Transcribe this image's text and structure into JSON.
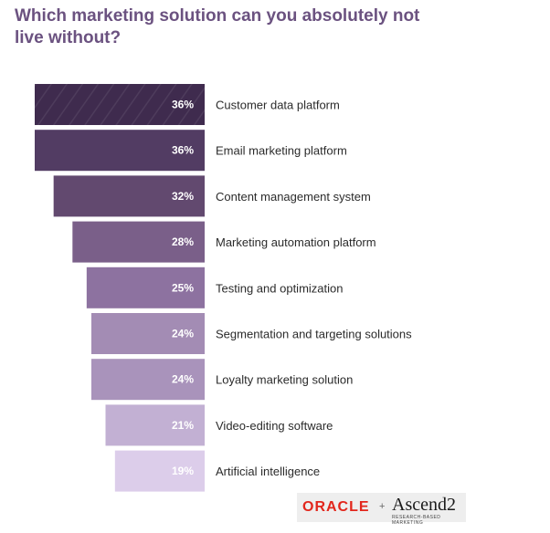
{
  "title": "Which marketing solution can you absolutely not live without?",
  "logos": {
    "oracle": "ORACLE",
    "separator": "+",
    "ascend": "Ascend2",
    "ascend_tagline": "RESEARCH-BASED MARKETING"
  },
  "chart_data": {
    "type": "bar",
    "orientation": "horizontal",
    "categories": [
      "Customer data platform",
      "Email marketing platform",
      "Content management system",
      "Marketing automation platform",
      "Testing and optimization",
      "Segmentation and targeting solutions",
      "Loyalty marketing solution",
      "Video-editing software",
      "Artificial intelligence"
    ],
    "values": [
      36,
      36,
      32,
      28,
      25,
      24,
      24,
      21,
      19
    ],
    "value_labels": [
      "36%",
      "36%",
      "32%",
      "28%",
      "25%",
      "24%",
      "24%",
      "21%",
      "19%"
    ],
    "colors": [
      "#3f2b4e",
      "#523c63",
      "#62496f",
      "#7a5f89",
      "#8d72a0",
      "#a38cb4",
      "#a993bb",
      "#c2b0d3",
      "#dccdea"
    ],
    "title": "Which marketing solution can you absolutely not live without?",
    "xlabel": "",
    "ylabel": "",
    "grid": false,
    "legend": "none"
  }
}
